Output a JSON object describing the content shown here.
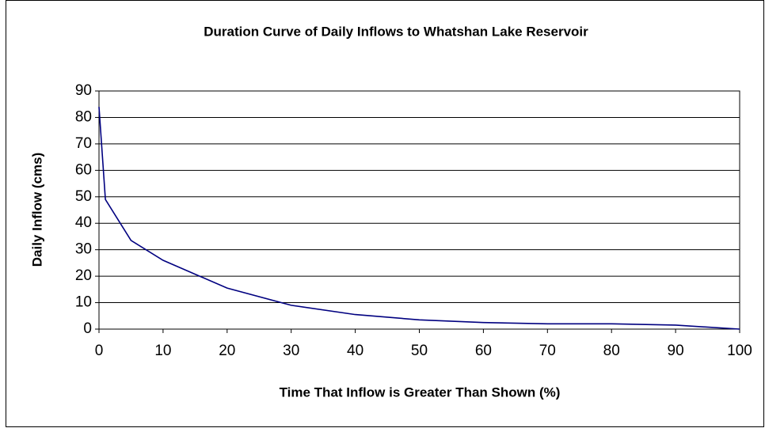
{
  "chart_data": {
    "type": "line",
    "title": "Duration Curve of Daily Inflows to Whatshan Lake Reservoir",
    "x_label": "Time That Inflow is Greater Than Shown (%)",
    "y_label": "Daily Inflow (cms)",
    "x": [
      0,
      1,
      5,
      10,
      20,
      30,
      40,
      50,
      60,
      70,
      80,
      90,
      100
    ],
    "series": [
      {
        "name": "Daily Inflow",
        "color": "#000080",
        "values": [
          84,
          49,
          33.5,
          26,
          15.5,
          9,
          5.5,
          3.5,
          2.5,
          2,
          2,
          1.5,
          0
        ]
      }
    ],
    "xlim": [
      0,
      100
    ],
    "xticks": [
      0,
      10,
      20,
      30,
      40,
      50,
      60,
      70,
      80,
      90,
      100
    ],
    "ylim": [
      0,
      90
    ],
    "yticks": [
      0,
      10,
      20,
      30,
      40,
      50,
      60,
      70,
      80,
      90
    ],
    "grid": true
  }
}
